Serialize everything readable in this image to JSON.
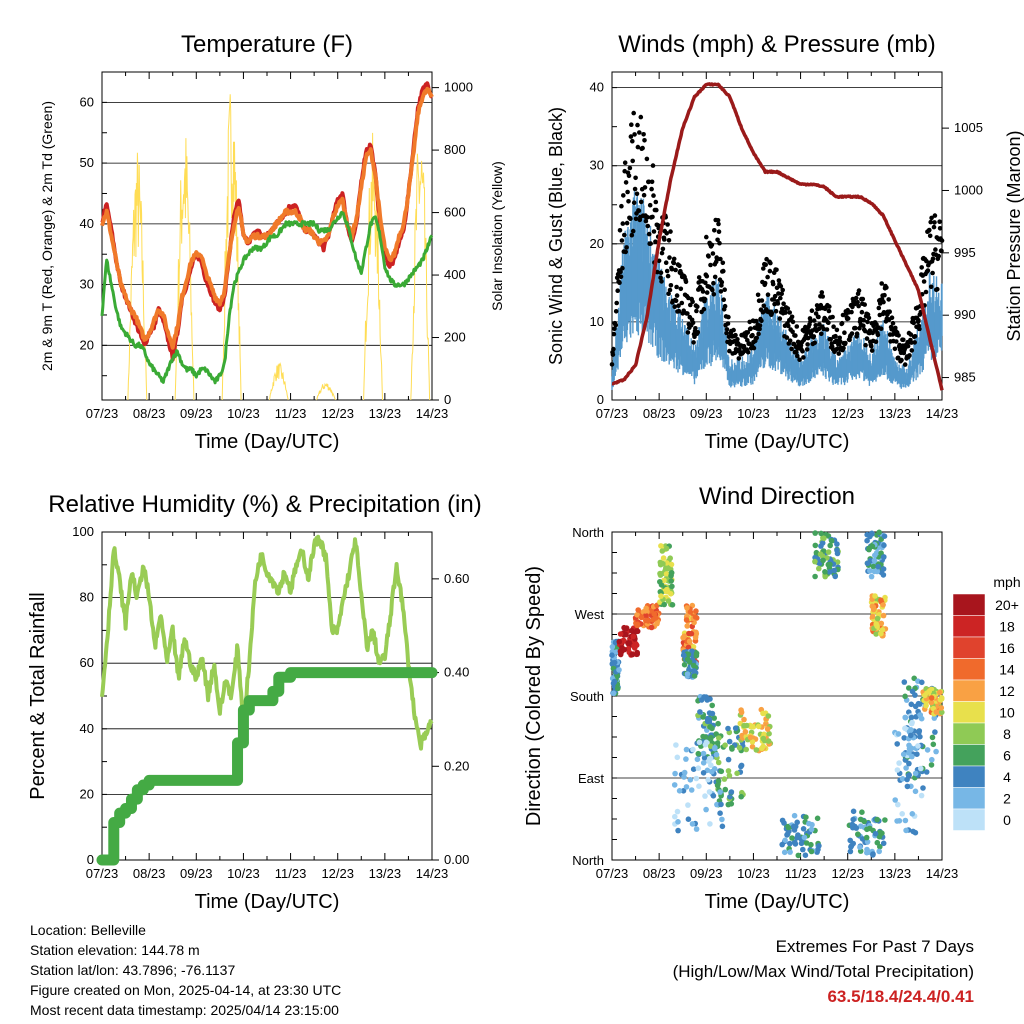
{
  "colors": {
    "temp_red": "#cc2222",
    "temp_orange": "#f07a2a",
    "dewpoint_green": "#3aaa35",
    "solar_yellow": "#ffdd55",
    "gust_black": "#000000",
    "wind_blue": "#5599cc",
    "pressure_maroon": "#9a1a1a",
    "rh_light_green": "#99cc55",
    "precip_green": "#44aa44",
    "extremes_red": "#cc2222"
  },
  "x_tick_labels": [
    "07/23",
    "08/23",
    "09/23",
    "10/23",
    "11/23",
    "12/23",
    "13/23",
    "14/23"
  ],
  "x_axis_label": "Time (Day/UTC)",
  "chart_data": [
    {
      "id": "temperature",
      "type": "line",
      "title": "Temperature (F)",
      "xlabel": "Time (Day/UTC)",
      "ylabel": "2m & 9m T (Red, Orange) & 2m Td (Green)",
      "y2label": "Solar Insolation (Yellow)",
      "x": [
        0,
        0.05,
        0.1,
        0.2,
        0.3,
        0.4,
        0.5,
        0.6,
        0.7,
        0.8,
        0.9,
        1.0,
        1.1,
        1.2,
        1.3,
        1.4,
        1.5,
        1.6,
        1.7,
        1.8,
        1.9,
        2.0,
        2.1,
        2.2,
        2.3,
        2.4,
        2.5,
        2.6,
        2.7,
        2.8,
        2.9,
        3.0,
        3.1,
        3.2,
        3.3,
        3.4,
        3.5,
        3.6,
        3.7,
        3.8,
        3.9,
        4.0,
        4.1,
        4.2,
        4.3,
        4.4,
        4.5,
        4.6,
        4.7,
        4.8,
        4.9,
        5.0,
        5.1,
        5.2,
        5.3,
        5.4,
        5.5,
        5.6,
        5.7,
        5.8,
        5.9,
        6.0,
        6.1,
        6.2,
        6.3,
        6.4,
        6.5,
        6.6,
        6.7,
        6.8,
        6.9,
        7.0
      ],
      "ylim": [
        11,
        65
      ],
      "y2lim": [
        0,
        1050
      ],
      "series": [
        {
          "name": "2m T",
          "color": "#cc2222",
          "values": [
            40,
            42,
            43,
            39,
            34,
            30,
            28,
            26,
            24,
            22,
            20,
            22,
            23,
            26,
            24,
            21,
            18,
            22,
            28,
            30,
            33,
            35,
            34,
            31,
            29,
            27,
            26,
            28,
            35,
            41,
            44,
            38,
            37,
            38,
            39,
            38,
            38,
            39,
            40,
            41,
            42,
            43,
            43,
            41,
            39,
            39,
            38,
            37,
            36,
            38,
            41,
            44,
            45,
            40,
            37,
            40,
            47,
            52,
            53,
            48,
            40,
            35,
            33,
            34,
            37,
            39,
            45,
            52,
            59,
            62,
            63,
            61
          ]
        },
        {
          "name": "9m T",
          "color": "#f07a2a",
          "values": [
            40,
            41,
            42,
            38,
            34,
            30,
            28,
            26,
            25,
            23,
            21,
            22,
            24,
            26,
            25,
            22,
            20,
            23,
            28,
            31,
            34,
            35,
            35,
            32,
            30,
            28,
            27,
            29,
            35,
            40,
            43,
            38,
            37,
            38,
            38,
            38,
            38,
            39,
            40,
            41,
            42,
            42,
            42,
            41,
            39,
            39,
            38,
            37,
            37,
            38,
            41,
            43,
            44,
            40,
            38,
            41,
            46,
            51,
            52,
            48,
            41,
            36,
            34,
            35,
            38,
            40,
            45,
            51,
            58,
            61,
            62,
            61
          ]
        },
        {
          "name": "2m Td",
          "color": "#3aaa35",
          "values": [
            25,
            30,
            34,
            30,
            26,
            23,
            22,
            21,
            20,
            20,
            19,
            17,
            16,
            15,
            14,
            16,
            18,
            19,
            17,
            16,
            16,
            15,
            16,
            16,
            15,
            14,
            15,
            17,
            25,
            30,
            32,
            34,
            35,
            36,
            36,
            36,
            37,
            38,
            38,
            39,
            40,
            40,
            40,
            40,
            40,
            40,
            40,
            39,
            39,
            39,
            40,
            41,
            42,
            40,
            37,
            34,
            32,
            36,
            40,
            41,
            38,
            33,
            31,
            30,
            30,
            30,
            31,
            32,
            33,
            34,
            36,
            38
          ]
        },
        {
          "name": "Solar Insolation",
          "color": "#ffdd55",
          "axis": "y2",
          "days": [
            0,
            1,
            2,
            3,
            4,
            5,
            6
          ],
          "peaks": [
            820,
            900,
            1050,
            120,
            60,
            860,
            900
          ]
        }
      ]
    },
    {
      "id": "winds",
      "type": "line",
      "title": "Winds (mph) & Pressure (mb)",
      "xlabel": "Time (Day/UTC)",
      "ylabel": "Sonic Wind & Gust (Blue, Black)",
      "y2label": "Station Pressure (Maroon)",
      "ylim": [
        0,
        42
      ],
      "y2lim": [
        983.2,
        1009.5
      ],
      "x": [
        0,
        0.25,
        0.5,
        0.75,
        1.0,
        1.25,
        1.5,
        1.75,
        2.0,
        2.25,
        2.5,
        2.75,
        3.0,
        3.25,
        3.5,
        3.75,
        4.0,
        4.25,
        4.5,
        4.75,
        5.0,
        5.25,
        5.5,
        5.75,
        6.0,
        6.25,
        6.5,
        6.75,
        7.0
      ],
      "series": [
        {
          "name": "Gust",
          "color": "#000000",
          "values": [
            5,
            25,
            32,
            28,
            22,
            18,
            14,
            10,
            18,
            20,
            8,
            7,
            9,
            16,
            14,
            10,
            7,
            10,
            12,
            8,
            10,
            12,
            8,
            14,
            8,
            6,
            12,
            20,
            20
          ]
        },
        {
          "name": "Wind",
          "color": "#5599cc",
          "values": [
            3,
            15,
            20,
            18,
            13,
            10,
            8,
            5,
            10,
            12,
            4,
            4,
            5,
            10,
            9,
            6,
            4,
            6,
            7,
            4,
            5,
            7,
            4,
            8,
            4,
            3,
            7,
            12,
            12
          ]
        },
        {
          "name": "Station Pressure",
          "color": "#9a1a1a",
          "axis": "y2",
          "values": [
            984.5,
            984.8,
            986,
            990,
            996,
            1001,
            1005,
            1007.5,
            1008.5,
            1008.5,
            1007.5,
            1005,
            1003,
            1001.5,
            1001.5,
            1001,
            1000.5,
            1000.5,
            1000.3,
            999.5,
            999.5,
            999.5,
            999,
            998,
            996,
            994,
            992,
            988,
            984
          ]
        }
      ]
    },
    {
      "id": "humidity",
      "type": "line",
      "title": "Relative Humidity (%) & Precipitation (in)",
      "xlabel": "Time (Day/UTC)",
      "ylabel": "Percent & Total Rainfall",
      "ylim": [
        0,
        100
      ],
      "y2lim": [
        0,
        0.7
      ],
      "x": [
        0,
        0.125,
        0.25,
        0.375,
        0.5,
        0.625,
        0.75,
        0.875,
        1.0,
        1.125,
        1.25,
        1.375,
        1.5,
        1.625,
        1.75,
        1.875,
        2.0,
        2.125,
        2.25,
        2.375,
        2.5,
        2.625,
        2.75,
        2.875,
        3.0,
        3.125,
        3.25,
        3.375,
        3.5,
        3.625,
        3.75,
        3.875,
        4.0,
        4.125,
        4.25,
        4.375,
        4.5,
        4.625,
        4.75,
        4.875,
        5.0,
        5.125,
        5.25,
        5.375,
        5.5,
        5.625,
        5.75,
        5.875,
        6.0,
        6.125,
        6.25,
        6.375,
        6.5,
        6.625,
        6.75,
        6.875,
        7.0
      ],
      "series": [
        {
          "name": "Relative Humidity",
          "color": "#99cc55",
          "values": [
            50,
            70,
            95,
            85,
            72,
            88,
            80,
            90,
            80,
            65,
            75,
            60,
            70,
            55,
            68,
            60,
            55,
            62,
            50,
            60,
            45,
            55,
            50,
            65,
            42,
            60,
            85,
            93,
            88,
            85,
            82,
            88,
            82,
            90,
            94,
            86,
            96,
            98,
            92,
            70,
            70,
            80,
            88,
            98,
            80,
            65,
            70,
            60,
            62,
            75,
            90,
            78,
            60,
            45,
            35,
            38,
            43
          ]
        },
        {
          "name": "Total Precipitation",
          "color": "#44aa44",
          "axis": "y2",
          "values": [
            0,
            0,
            0.08,
            0.1,
            0.11,
            0.13,
            0.15,
            0.16,
            0.17,
            0.17,
            0.17,
            0.17,
            0.17,
            0.17,
            0.17,
            0.17,
            0.17,
            0.17,
            0.17,
            0.17,
            0.17,
            0.17,
            0.17,
            0.25,
            0.32,
            0.34,
            0.34,
            0.34,
            0.34,
            0.36,
            0.39,
            0.39,
            0.4,
            0.4,
            0.4,
            0.4,
            0.4,
            0.4,
            0.4,
            0.4,
            0.4,
            0.4,
            0.4,
            0.4,
            0.4,
            0.4,
            0.4,
            0.4,
            0.4,
            0.4,
            0.4,
            0.4,
            0.4,
            0.4,
            0.4,
            0.4,
            0.4
          ]
        }
      ]
    },
    {
      "id": "wind_direction",
      "type": "scatter",
      "title": "Wind Direction",
      "xlabel": "Time (Day/UTC)",
      "ylabel": "Direction (Colored By Speed)",
      "ylim": [
        0,
        360
      ],
      "direction_labels": [
        "North",
        "East",
        "South",
        "West",
        "North"
      ],
      "legend_title": "mph",
      "legend_labels": [
        "20+",
        "18",
        "16",
        "14",
        "12",
        "10",
        "8",
        "6",
        "4",
        "2",
        "0"
      ],
      "legend_colors": [
        "#a8151d",
        "#cc2424",
        "#e0432d",
        "#f06a2c",
        "#f9a144",
        "#e8e04c",
        "#8fca55",
        "#44a25c",
        "#3f83c0",
        "#77b7e6",
        "#bde1f8"
      ],
      "legend_placement": "right",
      "clusters": [
        {
          "x": [
            0.0,
            0.15
          ],
          "dir": [
            180,
            240
          ],
          "speed": 4
        },
        {
          "x": [
            0.15,
            0.55
          ],
          "dir": [
            225,
            255
          ],
          "speed": 20
        },
        {
          "x": [
            0.5,
            1.0
          ],
          "dir": [
            255,
            280
          ],
          "speed": 14
        },
        {
          "x": [
            1.0,
            1.3
          ],
          "dir": [
            280,
            345
          ],
          "speed": 8
        },
        {
          "x": [
            1.5,
            1.8
          ],
          "dir": [
            215,
            280
          ],
          "speed": 13
        },
        {
          "x": [
            1.5,
            1.8
          ],
          "dir": [
            200,
            230
          ],
          "speed": 4
        },
        {
          "x": [
            1.8,
            2.2
          ],
          "dir": [
            110,
            180
          ],
          "speed": 5
        },
        {
          "x": [
            2.2,
            2.8
          ],
          "dir": [
            60,
            150
          ],
          "speed": 6
        },
        {
          "x": [
            2.7,
            3.4
          ],
          "dir": [
            120,
            165
          ],
          "speed": 10
        },
        {
          "x": [
            3.6,
            4.4
          ],
          "dir": [
            5,
            50
          ],
          "speed": 4
        },
        {
          "x": [
            4.3,
            4.8
          ],
          "dir": [
            310,
            360
          ],
          "speed": 6
        },
        {
          "x": [
            5.0,
            5.8
          ],
          "dir": [
            5,
            55
          ],
          "speed": 4
        },
        {
          "x": [
            5.4,
            5.8
          ],
          "dir": [
            310,
            360
          ],
          "speed": 4
        },
        {
          "x": [
            5.5,
            5.8
          ],
          "dir": [
            245,
            290
          ],
          "speed": 11
        },
        {
          "x": [
            6.2,
            6.9
          ],
          "dir": [
            90,
            200
          ],
          "speed": 4
        },
        {
          "x": [
            6.6,
            7.0
          ],
          "dir": [
            160,
            190
          ],
          "speed": 11
        },
        {
          "x": [
            1.3,
            2.4
          ],
          "dir": [
            30,
            130
          ],
          "speed": 2
        },
        {
          "x": [
            6.0,
            6.6
          ],
          "dir": [
            30,
            160
          ],
          "speed": 2
        }
      ]
    }
  ],
  "footer": {
    "location": "Location: Belleville",
    "elevation": "Station elevation: 144.78 m",
    "latlon": "Station lat/lon: 43.7896; -76.1137",
    "created": "Figure created on Mon, 2025-04-14, at 23:30 UTC",
    "timestamp": "Most recent data timestamp: 2025/04/14 23:15:00",
    "extremes_title": "Extremes For Past 7 Days",
    "extremes_subtitle": "(High/Low/Max Wind/Total Precipitation)",
    "extremes_values": "63.5/18.4/24.4/0.41"
  }
}
